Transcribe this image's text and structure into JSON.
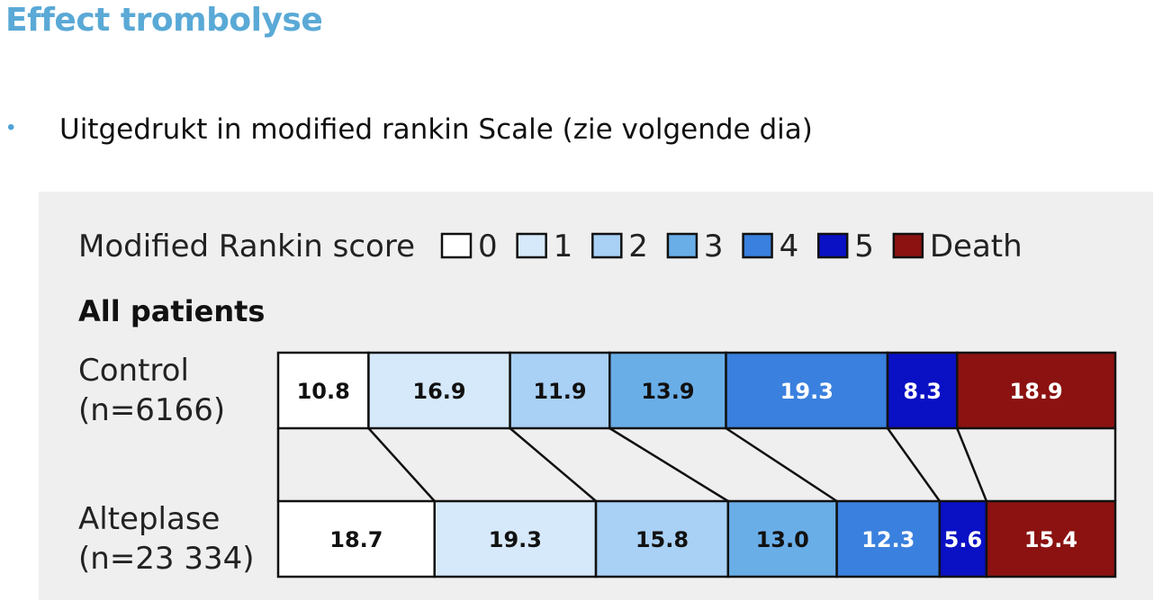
{
  "slide": {
    "title": "Effect trombolyse",
    "bullet": "Uitgedrukt in modified rankin Scale (zie volgende dia)"
  },
  "chart_data": {
    "type": "bar",
    "orientation": "horizontal-stacked-100",
    "legend_title": "Modified Rankin score",
    "section_title": "All patients",
    "categories": [
      "0",
      "1",
      "2",
      "3",
      "4",
      "5",
      "Death"
    ],
    "colors": [
      "#ffffff",
      "#d6e9fb",
      "#a9d0f5",
      "#6aaee8",
      "#3a80de",
      "#0a10c4",
      "#8b1211"
    ],
    "rows": [
      {
        "label_line1": "Control",
        "label_line2": "(n=6166)",
        "values": [
          10.8,
          16.9,
          11.9,
          13.9,
          19.3,
          8.3,
          18.9
        ],
        "value_labels": [
          "10.8",
          "16.9",
          "11.9",
          "13.9",
          "19.3",
          "8.3",
          "18.9"
        ]
      },
      {
        "label_line1": "Alteplase",
        "label_line2": "(n=23 334)",
        "values": [
          18.7,
          19.3,
          15.8,
          13.0,
          12.3,
          5.6,
          15.4
        ],
        "value_labels": [
          "18.7",
          "19.3",
          "15.8",
          "13.0",
          "12.3",
          "5.6",
          "15.4"
        ]
      }
    ],
    "unit": "%"
  }
}
